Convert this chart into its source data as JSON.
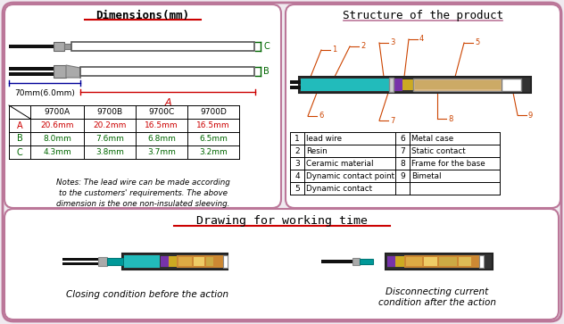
{
  "bg_color": "#f0eaf0",
  "title_dims": "Dimensions(mm)",
  "title_struct": "Structure of the product",
  "title_work": "Drawing for working time",
  "table_headers": [
    "",
    "9700A",
    "9700B",
    "9700C",
    "9700D"
  ],
  "row_A": [
    "A",
    "20.6mm",
    "20.2mm",
    "16.5mm",
    "16.5mm"
  ],
  "row_B": [
    "B",
    "8.0mm",
    "7.6mm",
    "6.8mm",
    "6.5mm"
  ],
  "row_C": [
    "C",
    "4.3mm",
    "3.8mm",
    "3.7mm",
    "3.2mm"
  ],
  "notes": "Notes: The lead wire can be made according\nto the customers' requirements. The above\ndimension is the one non-insulated sleeving.",
  "label_70mm": "70mm(6.0mm)",
  "caption_left": "Closing condition before the action",
  "caption_right": "Disconnecting current\ncondition after the action",
  "color_red": "#cc0000",
  "color_green": "#006600",
  "color_blue": "#000099",
  "color_border": "#bb7799",
  "color_teal": "#009999",
  "color_teal2": "#22bbbb",
  "color_purple": "#7733aa",
  "color_gold": "#ccaa22",
  "color_brown": "#cc8833",
  "ann_color": "#cc4400",
  "legend_rows": [
    [
      "1",
      "lead wire",
      "6",
      "Metal case"
    ],
    [
      "2",
      "Resin",
      "7",
      "Static contact"
    ],
    [
      "3",
      "Ceramic material",
      "8",
      "Frame for the base"
    ],
    [
      "4",
      "Dynamic contact point",
      "9",
      "Bimetal"
    ],
    [
      "5",
      "Dynamic contact",
      "",
      ""
    ]
  ]
}
